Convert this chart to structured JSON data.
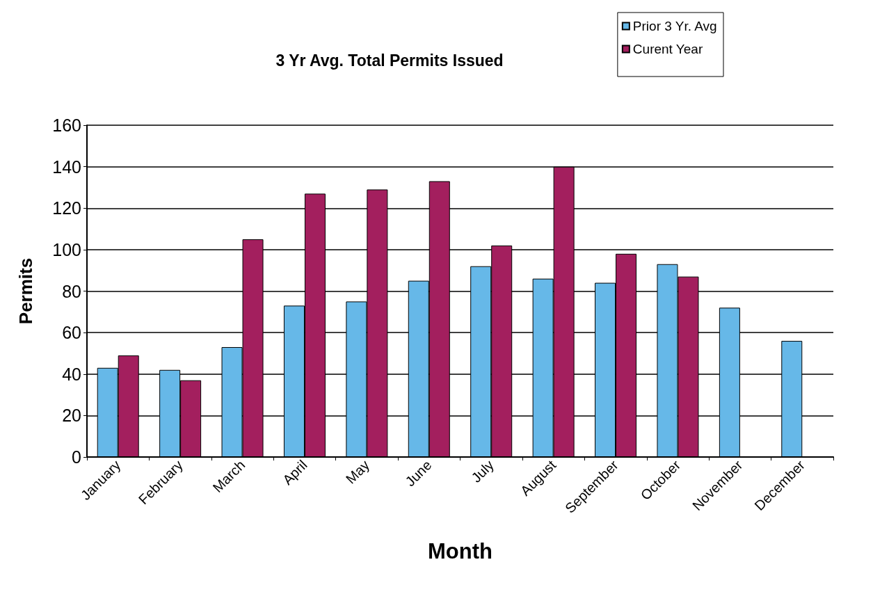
{
  "chart_data": {
    "type": "bar",
    "title": "3 Yr Avg. Total Permits Issued",
    "xlabel": "Month",
    "ylabel": "Permits",
    "categories": [
      "January",
      "February",
      "March",
      "April",
      "May",
      "June",
      "July",
      "August",
      "September",
      "October",
      "November",
      "December"
    ],
    "series": [
      {
        "name": "Prior 3 Yr. Avg",
        "color": "#66b8e8",
        "values": [
          43,
          42,
          53,
          73,
          75,
          85,
          92,
          86,
          84,
          93,
          72,
          56
        ]
      },
      {
        "name": "Curent Year",
        "color": "#a31f5e",
        "values": [
          49,
          37,
          105,
          127,
          129,
          133,
          102,
          140,
          98,
          87,
          null,
          null
        ]
      }
    ],
    "ylim": [
      0,
      160
    ],
    "yticks": [
      0,
      20,
      40,
      60,
      80,
      100,
      120,
      140,
      160
    ],
    "grid": "y",
    "legend": "top right"
  }
}
